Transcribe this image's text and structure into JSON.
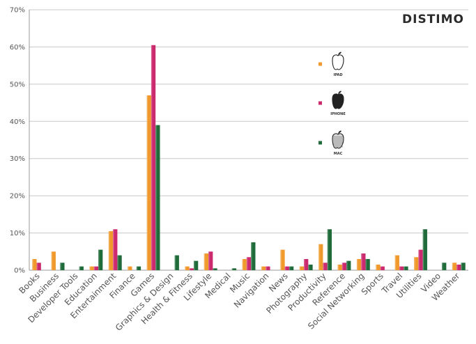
{
  "brand": "DISTIMO",
  "chart_data": {
    "type": "bar",
    "ylim": [
      0,
      70
    ],
    "yticks": [
      "0%",
      "10%",
      "20%",
      "30%",
      "40%",
      "50%",
      "60%",
      "70%"
    ],
    "grid": "horizontal",
    "legend_position": "upper-right",
    "categories": [
      "Books",
      "Business",
      "Developer Tools",
      "Education",
      "Entertainment",
      "Finance",
      "Games",
      "Graphics & Design",
      "Health & Fitness",
      "Lifestyle",
      "Medical",
      "Music",
      "Navigation",
      "News",
      "Photography",
      "Productivity",
      "Reference",
      "Social Networking",
      "Sports",
      "Travel",
      "Utilities",
      "Video",
      "Weather"
    ],
    "series": [
      {
        "name": "IPAD",
        "color": "#f09a2e",
        "values": [
          3,
          5,
          0,
          1,
          10.5,
          1,
          47,
          0,
          1,
          4.5,
          0,
          3,
          1,
          5.5,
          1,
          7,
          1.5,
          3,
          1.5,
          4,
          3.5,
          0,
          2
        ]
      },
      {
        "name": "IPHONE",
        "color": "#cc2a6e",
        "values": [
          2,
          0,
          0,
          1,
          11,
          0,
          60.5,
          0,
          0.5,
          5,
          0,
          3.5,
          1,
          1,
          3,
          2,
          2,
          4.5,
          1,
          1,
          5.5,
          0,
          1.5
        ]
      },
      {
        "name": "MAC",
        "color": "#1f6b3a",
        "values": [
          0,
          2,
          1,
          5.5,
          4,
          1,
          39,
          4,
          2.5,
          0.5,
          0.5,
          7.5,
          0,
          1,
          1.5,
          11,
          2.5,
          3,
          0,
          1,
          11,
          2,
          2
        ]
      }
    ]
  }
}
